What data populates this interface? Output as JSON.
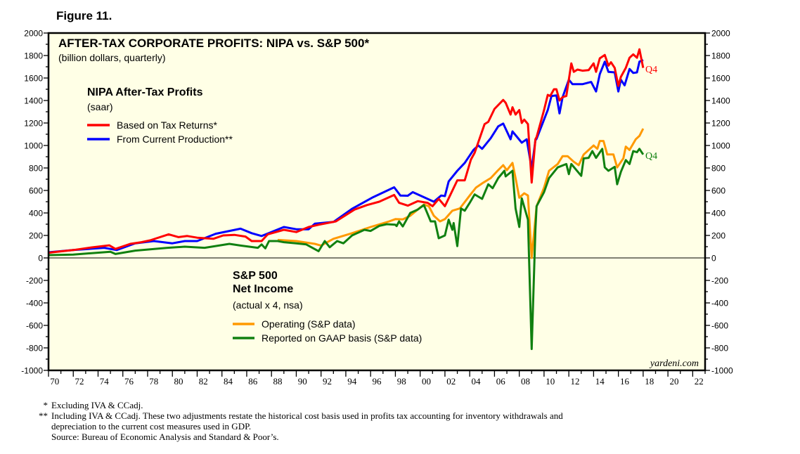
{
  "figure_label": "Figure 11.",
  "chart_data": {
    "type": "line",
    "title": "AFTER-TAX CORPORATE PROFITS: NIPA vs. S&P 500*",
    "subtitle": "(billion dollars, quarterly)",
    "xlim": [
      1970,
      2023
    ],
    "ylim": [
      -1000,
      2000
    ],
    "y_ticks": [
      "-1000",
      "-800",
      "-600",
      "-400",
      "-200",
      "0",
      "200",
      "400",
      "600",
      "800",
      "1000",
      "1200",
      "1400",
      "1600",
      "1800",
      "2000"
    ],
    "x_ticks": [
      "70",
      "72",
      "74",
      "76",
      "78",
      "80",
      "82",
      "84",
      "86",
      "88",
      "90",
      "92",
      "94",
      "96",
      "98",
      "00",
      "02",
      "04",
      "06",
      "08",
      "10",
      "12",
      "14",
      "16",
      "18",
      "20",
      "22"
    ],
    "grid": false,
    "zero_line": true,
    "legend_groups": [
      {
        "title": "NIPA After-Tax Profits",
        "subtitle": "(saar)",
        "placement": "top-left"
      },
      {
        "title_line1": "S&P 500",
        "title_line2": "Net Income",
        "subtitle": "(actual x 4, nsa)",
        "placement": "bottom-center"
      }
    ],
    "series": [
      {
        "name": "Based on Tax Returns*",
        "color": "#ff0000",
        "end_label": "Q4",
        "points": [
          [
            1970,
            45
          ],
          [
            1970.3,
            50
          ],
          [
            1972,
            70
          ],
          [
            1973.5,
            94
          ],
          [
            1974.9,
            112
          ],
          [
            1975.4,
            80
          ],
          [
            1976.6,
            125
          ],
          [
            1977.5,
            140
          ],
          [
            1978.2,
            156
          ],
          [
            1979.7,
            210
          ],
          [
            1980.5,
            185
          ],
          [
            1981.2,
            195
          ],
          [
            1982,
            180
          ],
          [
            1983.3,
            170
          ],
          [
            1984.1,
            200
          ],
          [
            1985,
            205
          ],
          [
            1985.9,
            190
          ],
          [
            1986.4,
            150
          ],
          [
            1987.2,
            150
          ],
          [
            1987.7,
            210
          ],
          [
            1989,
            250
          ],
          [
            1990,
            230
          ],
          [
            1991,
            275
          ],
          [
            1991.8,
            295
          ],
          [
            1993.2,
            325
          ],
          [
            1994.7,
            430
          ],
          [
            1995.7,
            470
          ],
          [
            1996.7,
            500
          ],
          [
            1997.9,
            560
          ],
          [
            1998.3,
            490
          ],
          [
            1999,
            465
          ],
          [
            1999.8,
            505
          ],
          [
            2000.6,
            490
          ],
          [
            2001,
            460
          ],
          [
            2001.5,
            525
          ],
          [
            2002,
            460
          ],
          [
            2003,
            690
          ],
          [
            2003.6,
            690
          ],
          [
            2004.1,
            875
          ],
          [
            2004.4,
            935
          ],
          [
            2005.2,
            1190
          ],
          [
            2005.5,
            1210
          ],
          [
            2006,
            1325
          ],
          [
            2006.7,
            1405
          ],
          [
            2006.9,
            1380
          ],
          [
            2007.3,
            1275
          ],
          [
            2007.45,
            1340
          ],
          [
            2007.7,
            1275
          ],
          [
            2008,
            1315
          ],
          [
            2008.2,
            1200
          ],
          [
            2008.4,
            1230
          ],
          [
            2008.7,
            1190
          ],
          [
            2009,
            670
          ],
          [
            2009.3,
            1055
          ],
          [
            2009.4,
            1075
          ],
          [
            2010,
            1315
          ],
          [
            2010.3,
            1450
          ],
          [
            2010.5,
            1440
          ],
          [
            2010.8,
            1500
          ],
          [
            2011,
            1500
          ],
          [
            2011.25,
            1400
          ],
          [
            2011.5,
            1430
          ],
          [
            2011.8,
            1440
          ],
          [
            2012.2,
            1730
          ],
          [
            2012.4,
            1655
          ],
          [
            2012.7,
            1675
          ],
          [
            2013.1,
            1665
          ],
          [
            2013.6,
            1670
          ],
          [
            2014,
            1730
          ],
          [
            2014.2,
            1655
          ],
          [
            2014.5,
            1775
          ],
          [
            2014.9,
            1805
          ],
          [
            2015.2,
            1710
          ],
          [
            2015.4,
            1740
          ],
          [
            2015.7,
            1690
          ],
          [
            2016,
            1530
          ],
          [
            2016.2,
            1610
          ],
          [
            2016.6,
            1690
          ],
          [
            2016.9,
            1780
          ],
          [
            2017.2,
            1810
          ],
          [
            2017.5,
            1780
          ],
          [
            2017.7,
            1855
          ],
          [
            2018,
            1690
          ]
        ]
      },
      {
        "name": "From Current Production**",
        "color": "#0000ff",
        "points": [
          [
            1970,
            50
          ],
          [
            1972,
            70
          ],
          [
            1974.5,
            90
          ],
          [
            1975.5,
            70
          ],
          [
            1977,
            130
          ],
          [
            1978.5,
            150
          ],
          [
            1980,
            130
          ],
          [
            1981,
            150
          ],
          [
            1982,
            150
          ],
          [
            1983.5,
            215
          ],
          [
            1985.5,
            260
          ],
          [
            1986.4,
            220
          ],
          [
            1987.2,
            195
          ],
          [
            1988,
            230
          ],
          [
            1989,
            275
          ],
          [
            1990,
            255
          ],
          [
            1991,
            255
          ],
          [
            1991.5,
            305
          ],
          [
            1993,
            320
          ],
          [
            1994.5,
            437
          ],
          [
            1996.2,
            540
          ],
          [
            1997.9,
            628
          ],
          [
            1998.4,
            555
          ],
          [
            1999,
            553
          ],
          [
            1999.4,
            585
          ],
          [
            2000.6,
            525
          ],
          [
            2001.1,
            500
          ],
          [
            2001.7,
            555
          ],
          [
            2002,
            550
          ],
          [
            2002.3,
            680
          ],
          [
            2003,
            775
          ],
          [
            2003.6,
            845
          ],
          [
            2004.3,
            960
          ],
          [
            2004.7,
            1000
          ],
          [
            2005,
            970
          ],
          [
            2005.7,
            1065
          ],
          [
            2006.3,
            1170
          ],
          [
            2006.7,
            1195
          ],
          [
            2007.3,
            1055
          ],
          [
            2007.45,
            1125
          ],
          [
            2008.2,
            1025
          ],
          [
            2008.6,
            1055
          ],
          [
            2009,
            795
          ],
          [
            2009.3,
            1045
          ],
          [
            2009.4,
            1060
          ],
          [
            2010,
            1230
          ],
          [
            2010.3,
            1315
          ],
          [
            2010.6,
            1440
          ],
          [
            2011,
            1445
          ],
          [
            2011.25,
            1285
          ],
          [
            2011.5,
            1430
          ],
          [
            2012,
            1585
          ],
          [
            2012.3,
            1545
          ],
          [
            2013.1,
            1545
          ],
          [
            2013.8,
            1565
          ],
          [
            2014.2,
            1480
          ],
          [
            2014.5,
            1635
          ],
          [
            2014.9,
            1745
          ],
          [
            2015.2,
            1655
          ],
          [
            2015.7,
            1650
          ],
          [
            2016,
            1480
          ],
          [
            2016.2,
            1585
          ],
          [
            2016.5,
            1535
          ],
          [
            2016.9,
            1680
          ],
          [
            2017.2,
            1645
          ],
          [
            2017.5,
            1650
          ],
          [
            2017.7,
            1745
          ],
          [
            2018,
            1760
          ]
        ]
      },
      {
        "name": "Operating (S&P data)",
        "color": "#ff9900",
        "points": [
          [
            1988.5,
            160
          ],
          [
            1990,
            150
          ],
          [
            1991.5,
            125
          ],
          [
            1992,
            110
          ],
          [
            1993,
            170
          ],
          [
            1994.5,
            220
          ],
          [
            1996,
            275
          ],
          [
            1997.5,
            325
          ],
          [
            1998,
            345
          ],
          [
            1998.6,
            343
          ],
          [
            1999.2,
            375
          ],
          [
            1999.8,
            430
          ],
          [
            2000.3,
            475
          ],
          [
            2000.7,
            460
          ],
          [
            2001.1,
            375
          ],
          [
            2001.6,
            325
          ],
          [
            2002,
            345
          ],
          [
            2002.6,
            420
          ],
          [
            2003.2,
            440
          ],
          [
            2004,
            555
          ],
          [
            2004.5,
            625
          ],
          [
            2005.1,
            670
          ],
          [
            2005.7,
            710
          ],
          [
            2006.25,
            775
          ],
          [
            2006.7,
            825
          ],
          [
            2007,
            780
          ],
          [
            2007.45,
            845
          ],
          [
            2007.7,
            710
          ],
          [
            2008,
            535
          ],
          [
            2008.4,
            575
          ],
          [
            2008.7,
            555
          ],
          [
            2009,
            0
          ],
          [
            2009.4,
            460
          ],
          [
            2010,
            625
          ],
          [
            2010.4,
            775
          ],
          [
            2011.1,
            835
          ],
          [
            2011.5,
            905
          ],
          [
            2011.9,
            905
          ],
          [
            2012.4,
            855
          ],
          [
            2012.8,
            825
          ],
          [
            2013.2,
            920
          ],
          [
            2014,
            1000
          ],
          [
            2014.3,
            970
          ],
          [
            2014.5,
            1040
          ],
          [
            2014.8,
            1040
          ],
          [
            2015.1,
            920
          ],
          [
            2015.6,
            920
          ],
          [
            2015.9,
            805
          ],
          [
            2016.4,
            885
          ],
          [
            2016.6,
            990
          ],
          [
            2016.9,
            960
          ],
          [
            2017.4,
            1055
          ],
          [
            2017.7,
            1085
          ],
          [
            2018,
            1150
          ]
        ]
      },
      {
        "name": "Reported on GAAP basis (S&P data)",
        "color": "#108010",
        "end_label": "Q4",
        "points": [
          [
            1970,
            25
          ],
          [
            1972,
            30
          ],
          [
            1975,
            55
          ],
          [
            1975.4,
            35
          ],
          [
            1977,
            65
          ],
          [
            1979.6,
            90
          ],
          [
            1981,
            100
          ],
          [
            1982.6,
            90
          ],
          [
            1984.6,
            125
          ],
          [
            1985.5,
            110
          ],
          [
            1986.9,
            90
          ],
          [
            1987.2,
            120
          ],
          [
            1987.5,
            85
          ],
          [
            1987.8,
            150
          ],
          [
            1988.5,
            150
          ],
          [
            1989,
            140
          ],
          [
            1990,
            130
          ],
          [
            1990.8,
            120
          ],
          [
            1991.8,
            60
          ],
          [
            1992.3,
            150
          ],
          [
            1992.7,
            95
          ],
          [
            1993.3,
            150
          ],
          [
            1993.8,
            130
          ],
          [
            1994.5,
            200
          ],
          [
            1995.5,
            250
          ],
          [
            1996,
            240
          ],
          [
            1996.7,
            285
          ],
          [
            1997.3,
            300
          ],
          [
            1998,
            295
          ],
          [
            1998.1,
            283
          ],
          [
            1998.3,
            325
          ],
          [
            1998.6,
            280
          ],
          [
            1999.2,
            400
          ],
          [
            1999.8,
            430
          ],
          [
            2000.3,
            470
          ],
          [
            2000.85,
            325
          ],
          [
            2001.2,
            325
          ],
          [
            2001.5,
            175
          ],
          [
            2002,
            200
          ],
          [
            2002.3,
            340
          ],
          [
            2002.6,
            250
          ],
          [
            2002.7,
            310
          ],
          [
            2003,
            105
          ],
          [
            2003.3,
            440
          ],
          [
            2003.6,
            420
          ],
          [
            2004,
            490
          ],
          [
            2004.4,
            565
          ],
          [
            2005,
            525
          ],
          [
            2005.5,
            655
          ],
          [
            2005.85,
            620
          ],
          [
            2006.3,
            710
          ],
          [
            2006.8,
            775
          ],
          [
            2006.9,
            725
          ],
          [
            2007.45,
            775
          ],
          [
            2007.7,
            440
          ],
          [
            2008,
            275
          ],
          [
            2008.2,
            530
          ],
          [
            2008.7,
            340
          ],
          [
            2009,
            -810
          ],
          [
            2009.3,
            250
          ],
          [
            2009.4,
            460
          ],
          [
            2010,
            585
          ],
          [
            2010.4,
            710
          ],
          [
            2011.1,
            805
          ],
          [
            2011.8,
            835
          ],
          [
            2012,
            745
          ],
          [
            2012.2,
            835
          ],
          [
            2013,
            730
          ],
          [
            2013.2,
            885
          ],
          [
            2013.6,
            890
          ],
          [
            2013.9,
            950
          ],
          [
            2014.2,
            890
          ],
          [
            2014.7,
            970
          ],
          [
            2014.9,
            805
          ],
          [
            2015.2,
            775
          ],
          [
            2015.7,
            810
          ],
          [
            2015.9,
            655
          ],
          [
            2016.2,
            765
          ],
          [
            2016.6,
            870
          ],
          [
            2016.9,
            835
          ],
          [
            2017.2,
            950
          ],
          [
            2017.5,
            940
          ],
          [
            2017.7,
            970
          ],
          [
            2018,
            920
          ]
        ]
      }
    ],
    "watermark": "yardeni.com"
  },
  "footnotes": [
    {
      "mark": "*",
      "text": "Excluding IVA & CCadj."
    },
    {
      "mark": "**",
      "text": "Including IVA & CCadj. These two adjustments restate the historical cost basis used in profits tax accounting for inventory withdrawals and"
    },
    {
      "mark": "",
      "text": "depreciation to the current cost measures used in GDP."
    },
    {
      "mark": "",
      "text": "Source: Bureau of Economic Analysis and Standard & Poor’s."
    }
  ]
}
